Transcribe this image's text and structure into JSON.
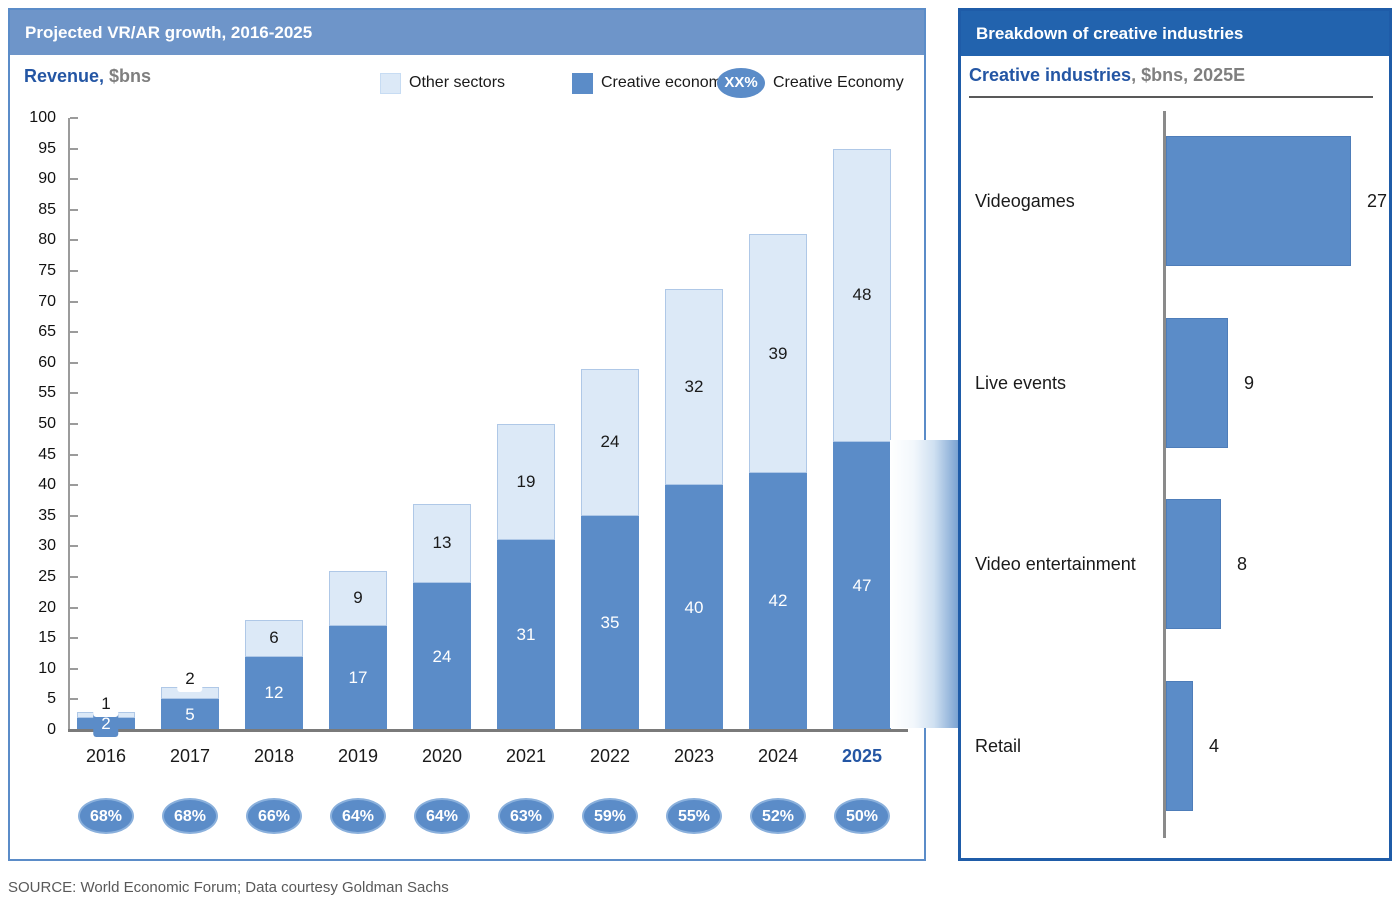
{
  "page": {
    "source_note": "SOURCE: World Economic Forum; Data courtesy Goldman Sachs"
  },
  "colors": {
    "left_header_bg": "#6e95c9",
    "right_header_bg": "#2263ae",
    "left_panel_border": "#5b8cc8",
    "right_panel_border": "#1f5ca8",
    "creative_blue": "#5b8cc8",
    "other_light_blue": "#dce9f7",
    "accent_text_blue": "#2456a4",
    "muted_text_gray": "#7f7f7f",
    "axis_gray": "#8a8a8a",
    "source_text_gray": "#595959",
    "connector_gradient": [
      "#ffffff",
      "#f2f7fc",
      "#cfe0f1",
      "#7ba3d2"
    ]
  },
  "left_panel": {
    "title": "Projected VR/AR growth, 2016-2025",
    "subtitle_label": "Revenue,",
    "subtitle_unit": " $bns",
    "legend": {
      "other_label": "Other sectors",
      "creative_label": "Creative economy",
      "oval_text": "XX%",
      "oval_label": "Creative Economy"
    }
  },
  "right_panel": {
    "title": "Breakdown of creative industries",
    "subtitle_label": "Creative industries",
    "subtitle_unit": ", $bns, 2025E"
  },
  "chart_data": [
    {
      "type": "bar",
      "stacked": true,
      "title": "Projected VR/AR growth, 2016-2025",
      "ylabel": "Revenue, $bns",
      "ylim": [
        0,
        100
      ],
      "ytick_step": 5,
      "grid": false,
      "legend_position": "top",
      "categories": [
        "2016",
        "2017",
        "2018",
        "2019",
        "2020",
        "2021",
        "2022",
        "2023",
        "2024",
        "2025"
      ],
      "series": [
        {
          "name": "Creative economy",
          "color": "#5b8cc8",
          "values": [
            2,
            5,
            12,
            17,
            24,
            31,
            35,
            40,
            42,
            47
          ]
        },
        {
          "name": "Other sectors",
          "color": "#dce9f7",
          "values": [
            1,
            2,
            6,
            9,
            13,
            19,
            24,
            32,
            39,
            48
          ]
        }
      ],
      "creative_economy_share": [
        "68%",
        "68%",
        "66%",
        "64%",
        "64%",
        "63%",
        "59%",
        "55%",
        "52%",
        "50%"
      ],
      "highlighted_category": "2025"
    },
    {
      "type": "bar",
      "orientation": "horizontal",
      "title": "Breakdown of creative industries",
      "subtitle": "Creative industries, $bns, 2025E",
      "categories": [
        "Videogames",
        "Live events",
        "Video entertainment",
        "Retail"
      ],
      "values": [
        27,
        9,
        8,
        4
      ],
      "xlim": [
        0,
        33
      ],
      "grid": false
    }
  ]
}
